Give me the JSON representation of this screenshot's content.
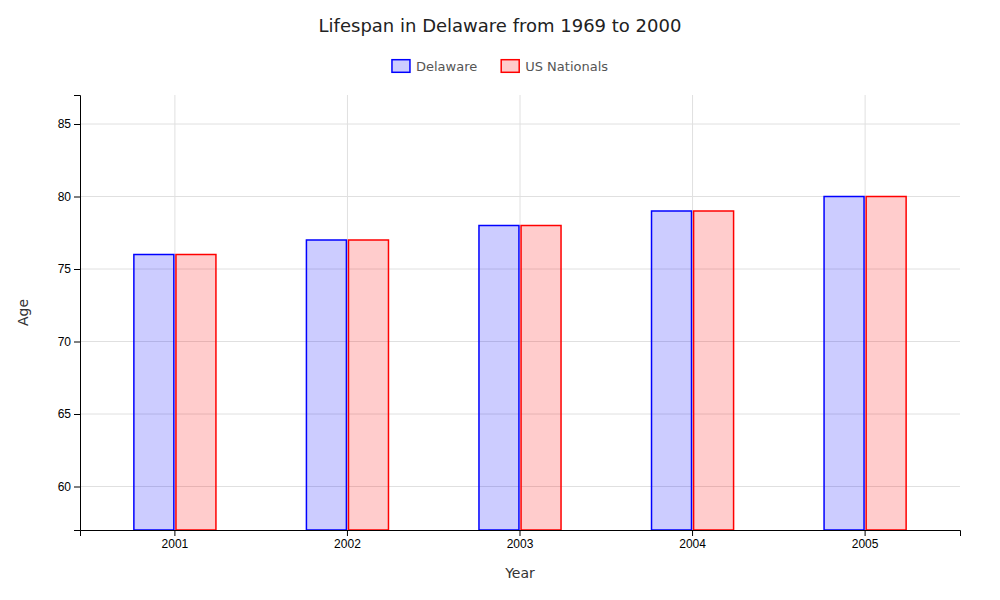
{
  "chart_data": {
    "type": "bar",
    "title": "Lifespan in Delaware from 1969 to 2000",
    "x_label": "Year",
    "y_label": "Age",
    "categories": [
      "2001",
      "2002",
      "2003",
      "2004",
      "2005"
    ],
    "series": [
      {
        "name": "Delaware",
        "color": "#0000ff",
        "values": [
          76,
          77,
          78,
          79,
          80
        ]
      },
      {
        "name": "US Nationals",
        "color": "#ff0000",
        "values": [
          76,
          77,
          78,
          79,
          80
        ]
      }
    ],
    "ylim": [
      57,
      87
    ],
    "yticks": [
      60,
      65,
      70,
      75,
      80,
      85
    ],
    "grid": true,
    "legend": "top"
  }
}
